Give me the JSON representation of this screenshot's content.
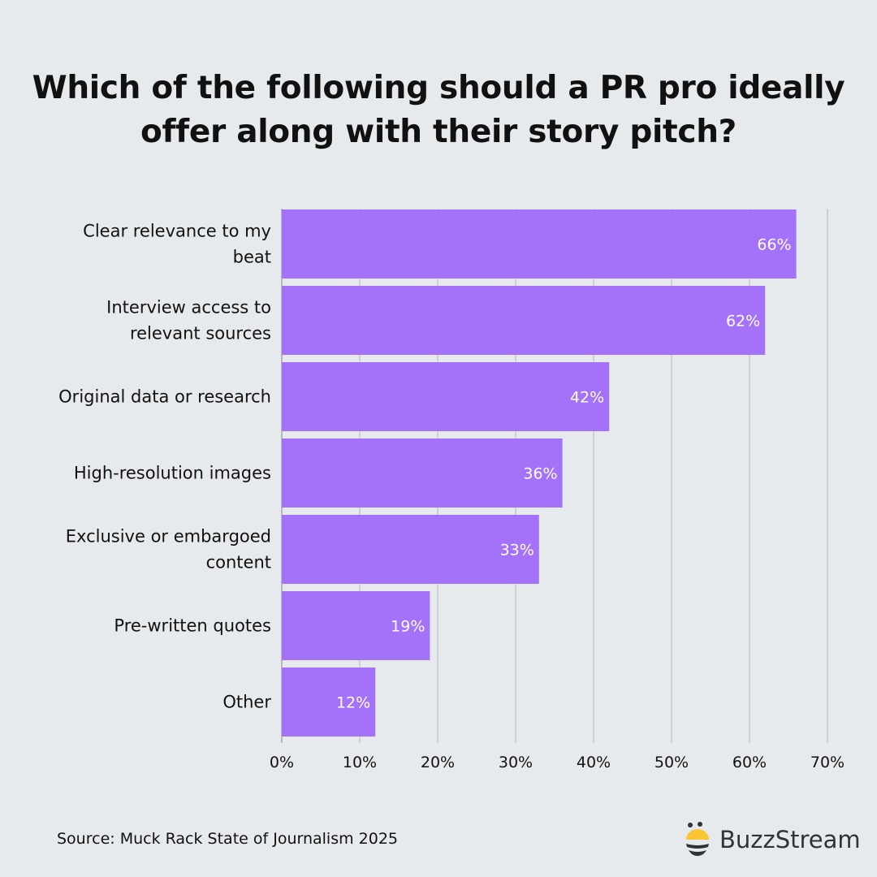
{
  "title": "Which of the following should a PR pro ideally offer along with their story pitch?",
  "source": "Source: Muck Rack State of Journalism 2025",
  "brand": "BuzzStream",
  "colors": {
    "bar": "#a472f8",
    "background": "#e7eaed",
    "grid": "#c8c8c8",
    "label_on_bar": "#ffffff"
  },
  "chart_data": {
    "type": "bar",
    "orientation": "horizontal",
    "title": "Which of the following should a PR pro ideally offer along with their story pitch?",
    "categories": [
      [
        "Clear relevance to my",
        "beat"
      ],
      [
        "Interview access to",
        "relevant sources"
      ],
      [
        "Original data or research"
      ],
      [
        "High-resolution images"
      ],
      [
        "Exclusive or embargoed",
        "content"
      ],
      [
        "Pre-written quotes"
      ],
      [
        "Other"
      ]
    ],
    "values": [
      66,
      62,
      42,
      36,
      33,
      19,
      12
    ],
    "data_labels": [
      "66%",
      "62%",
      "42%",
      "36%",
      "33%",
      "19%",
      "12%"
    ],
    "xlim": [
      0,
      70
    ],
    "xticks": [
      0,
      10,
      20,
      30,
      40,
      50,
      60,
      70
    ],
    "xtick_labels": [
      "0%",
      "10%",
      "20%",
      "30%",
      "40%",
      "50%",
      "60%",
      "70%"
    ],
    "grid": "vertical",
    "xlabel": "",
    "ylabel": ""
  }
}
